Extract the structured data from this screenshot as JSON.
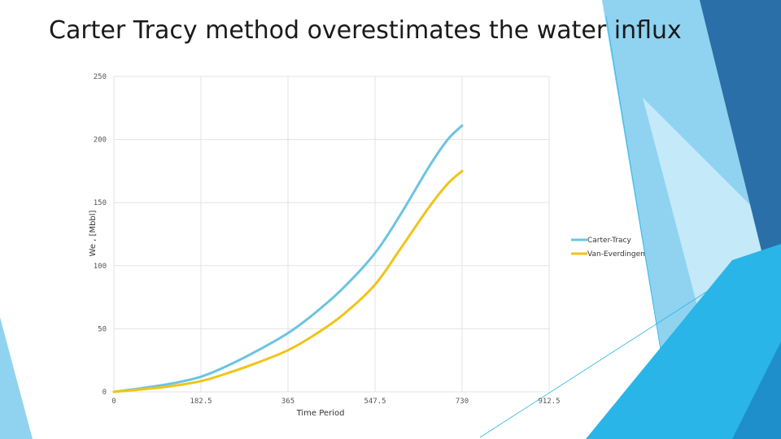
{
  "slide": {
    "title": "Carter Tracy method overestimates the water influx"
  },
  "theme": {
    "accent_light": "#8fd3f0",
    "accent_mid": "#29b5e8",
    "accent_dark": "#2a6fa8",
    "series_carter": "#6cc4e0",
    "series_van": "#f0c419"
  },
  "chart_data": {
    "type": "line",
    "title": "",
    "xlabel": "Time Period",
    "ylabel": "We , [Mbbl]",
    "xlim": [
      0,
      912.5
    ],
    "ylim": [
      0,
      250
    ],
    "x_ticks": [
      "0",
      "182.5",
      "365",
      "547.5",
      "730",
      "912.5"
    ],
    "y_ticks": [
      "0",
      "50",
      "100",
      "150",
      "200",
      "250"
    ],
    "grid": true,
    "legend_position": "right",
    "series": [
      {
        "name": "Carter-Tracy",
        "color": "#6cc4e0",
        "x": [
          0,
          60,
          120,
          182.5,
          240,
          300,
          365,
          420,
          480,
          547.5,
          600,
          660,
          700,
          730
        ],
        "y": [
          0,
          3,
          6.5,
          12,
          21,
          32.5,
          46.5,
          62,
          82,
          110,
          140,
          178,
          200,
          211
        ]
      },
      {
        "name": "Van-Everdingen",
        "color": "#f0c419",
        "x": [
          0,
          60,
          120,
          182.5,
          240,
          300,
          365,
          420,
          480,
          547.5,
          600,
          660,
          700,
          730
        ],
        "y": [
          0,
          2,
          4.5,
          8.5,
          15,
          23,
          33,
          45,
          61,
          85,
          113,
          146,
          165,
          175
        ]
      }
    ]
  }
}
